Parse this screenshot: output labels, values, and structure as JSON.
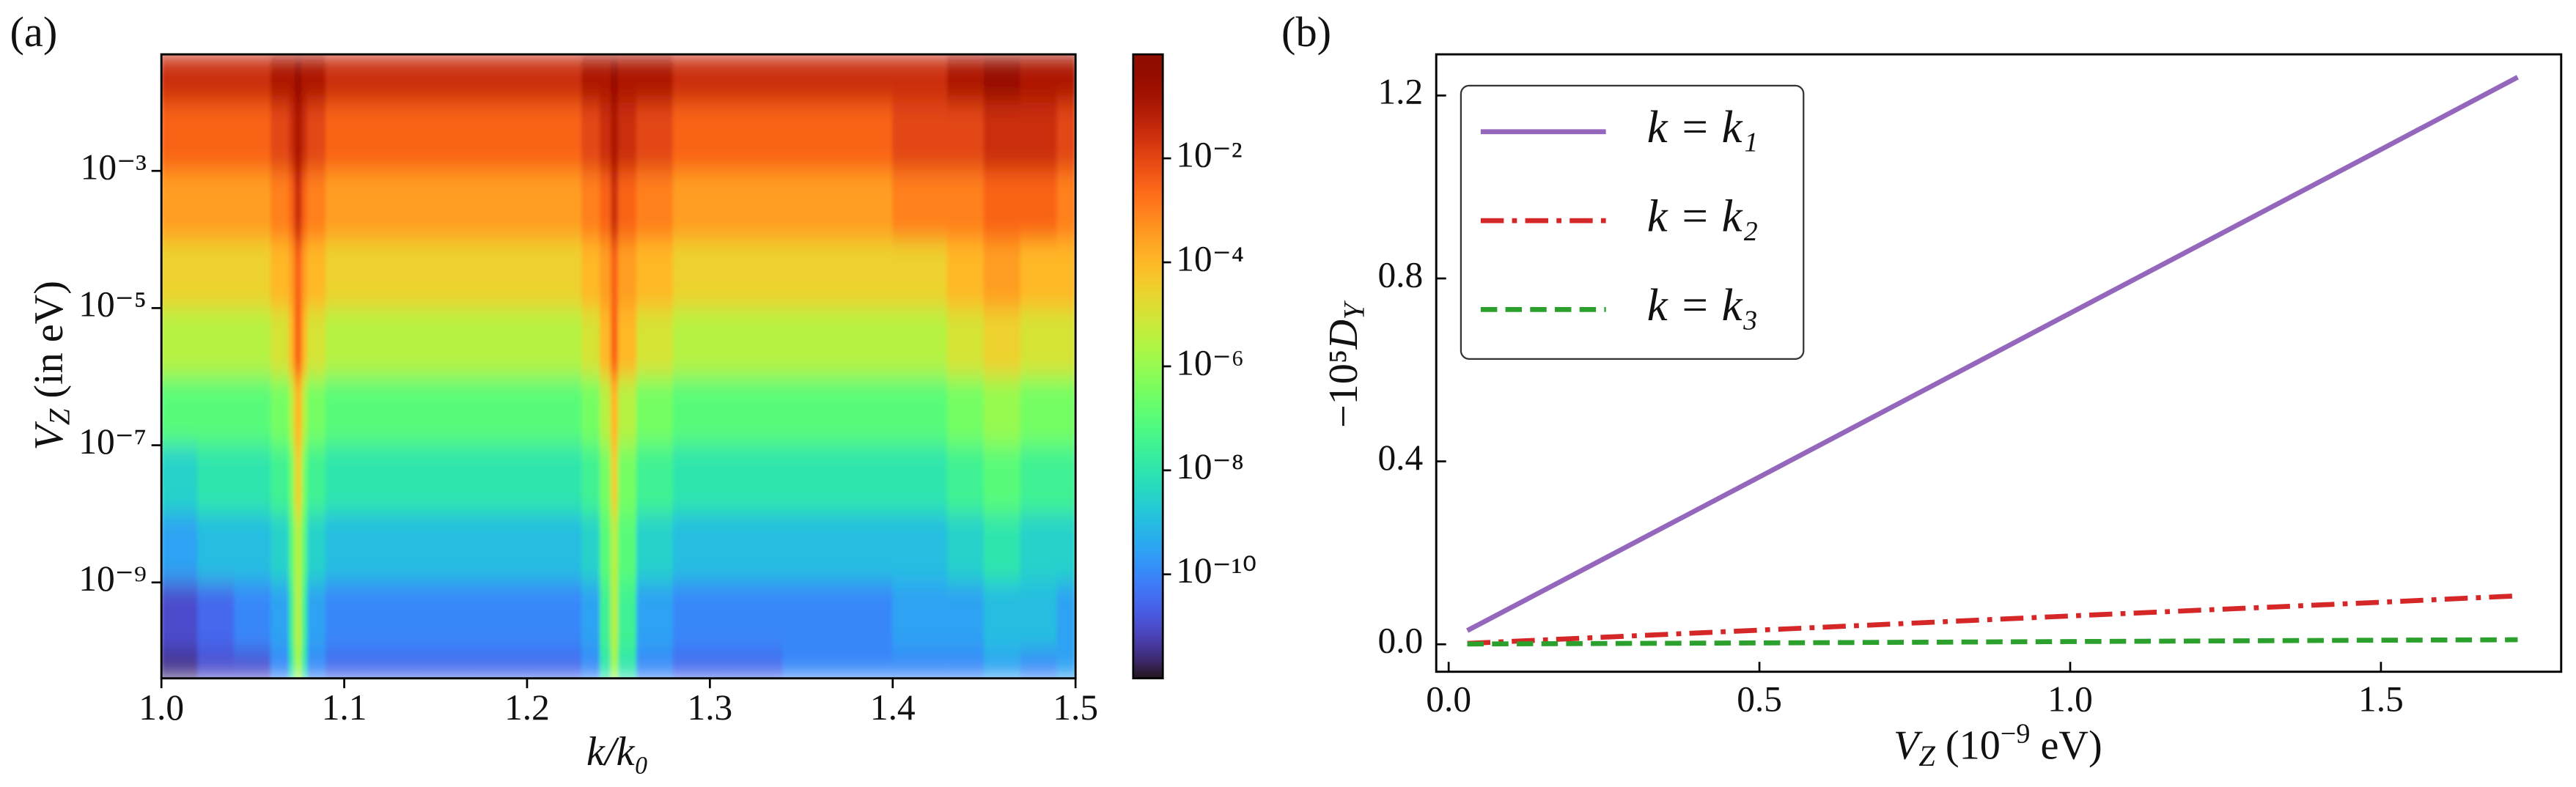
{
  "chart_data": [
    {
      "type": "heatmap",
      "panel_label": "(a)",
      "xlabel": "k/k₀",
      "ylabel": [
        "V",
        "Z",
        " (in eV)"
      ],
      "xlim": [
        1.0,
        1.5
      ],
      "xticks": [
        {
          "value": 1.0,
          "label": "1.0"
        },
        1.1,
        1.2,
        1.3,
        1.4,
        1.5
      ],
      "ylim": [
        4e-11,
        0.05
      ],
      "ylog": true,
      "yticks": [
        {
          "value": 1e-09,
          "label": "10⁻⁹"
        },
        {
          "value": 1e-07,
          "label": "10⁻⁷"
        },
        {
          "value": 1e-05,
          "label": "10⁻⁵"
        },
        {
          "value": 0.001,
          "label": "10⁻³"
        }
      ],
      "colormap": "turbo",
      "colorbar": {
        "lim": [
          1e-12,
          1
        ],
        "log": true,
        "ticks": [
          {
            "value": 1e-10,
            "label": "10⁻¹⁰"
          },
          {
            "value": 1e-08,
            "label": "10⁻⁸"
          },
          {
            "value": 1e-06,
            "label": "10⁻⁶"
          },
          {
            "value": 0.0001,
            "label": "10⁻⁴"
          },
          {
            "value": 0.01,
            "label": "10⁻²"
          }
        ]
      },
      "x_edges": [
        1.0,
        1.02,
        1.04,
        1.06,
        1.07,
        1.073,
        1.077,
        1.08,
        1.09,
        1.11,
        1.14,
        1.17,
        1.2,
        1.23,
        1.24,
        1.246,
        1.25,
        1.26,
        1.28,
        1.31,
        1.34,
        1.37,
        1.4,
        1.43,
        1.45,
        1.47,
        1.49,
        1.5
      ],
      "y_edges": [
        4e-11,
        1e-10,
        1e-09,
        1e-08,
        1e-07,
        1e-06,
        1e-05,
        0.0001,
        0.001,
        0.01,
        0.05
      ],
      "z": [
        [
          3e-12,
          1e-11,
          1e-11,
          1e-10,
          1e-08,
          1e-06,
          1e-08,
          1e-10,
          3e-11,
          3e-11,
          3e-11,
          3e-11,
          3e-11,
          1e-10,
          1e-08,
          1e-06,
          1e-08,
          1e-10,
          3e-11,
          3e-11,
          1e-10,
          1e-10,
          1e-10,
          1e-10,
          3e-10,
          1e-10,
          3e-10
        ],
        [
          1e-11,
          3e-11,
          1e-10,
          3e-10,
          3e-08,
          3e-06,
          3e-08,
          3e-10,
          1e-10,
          1e-10,
          1e-10,
          1e-10,
          1e-10,
          3e-10,
          3e-08,
          3e-06,
          3e-08,
          3e-10,
          1e-10,
          1e-10,
          1e-10,
          1e-10,
          3e-10,
          3e-10,
          1e-09,
          1e-09,
          3e-10
        ],
        [
          3e-10,
          1e-09,
          1e-09,
          3e-09,
          1e-07,
          3e-06,
          1e-07,
          3e-09,
          1e-09,
          1e-09,
          1e-09,
          1e-09,
          1e-09,
          3e-09,
          1e-07,
          3e-06,
          1e-07,
          3e-09,
          1e-09,
          1e-09,
          1e-09,
          1e-09,
          1e-09,
          3e-09,
          1e-08,
          3e-09,
          3e-09
        ],
        [
          3e-09,
          1e-08,
          1e-08,
          3e-08,
          3e-07,
          3e-05,
          3e-07,
          3e-08,
          1e-08,
          1e-08,
          1e-08,
          1e-08,
          1e-08,
          3e-08,
          3e-07,
          3e-05,
          3e-07,
          3e-08,
          1e-08,
          1e-08,
          1e-08,
          1e-08,
          1e-08,
          3e-08,
          1e-07,
          3e-08,
          3e-08
        ],
        [
          1e-07,
          1e-07,
          1e-07,
          3e-07,
          3e-06,
          0.0001,
          3e-06,
          3e-07,
          1e-07,
          1e-07,
          1e-07,
          1e-07,
          1e-07,
          3e-07,
          3e-06,
          0.0001,
          3e-06,
          3e-07,
          1e-07,
          1e-07,
          1e-07,
          1e-07,
          1e-07,
          3e-07,
          1e-06,
          3e-07,
          3e-07
        ],
        [
          3e-06,
          3e-06,
          3e-06,
          1e-05,
          0.0001,
          0.003,
          0.0001,
          1e-05,
          3e-06,
          3e-06,
          3e-06,
          3e-06,
          3e-06,
          1e-05,
          0.0001,
          0.003,
          0.0001,
          1e-05,
          3e-06,
          3e-06,
          3e-06,
          3e-06,
          3e-06,
          1e-05,
          3e-05,
          1e-05,
          1e-05
        ],
        [
          3e-05,
          3e-05,
          3e-05,
          0.0001,
          0.0003,
          0.003,
          0.0003,
          0.0001,
          3e-05,
          3e-05,
          3e-05,
          3e-05,
          3e-05,
          0.0001,
          0.0003,
          0.003,
          0.0003,
          0.0001,
          3e-05,
          3e-05,
          3e-05,
          3e-05,
          3e-05,
          0.0001,
          0.0003,
          0.0001,
          0.0001
        ],
        [
          0.0003,
          0.0003,
          0.0003,
          0.001,
          0.003,
          0.03,
          0.003,
          0.001,
          0.0003,
          0.0003,
          0.0003,
          0.0003,
          0.0003,
          0.001,
          0.003,
          0.03,
          0.003,
          0.001,
          0.0003,
          0.0003,
          0.0003,
          0.0003,
          0.001,
          0.001,
          0.003,
          0.003,
          0.001
        ],
        [
          0.003,
          0.003,
          0.003,
          0.01,
          0.03,
          0.1,
          0.03,
          0.01,
          0.003,
          0.003,
          0.003,
          0.003,
          0.003,
          0.01,
          0.03,
          0.1,
          0.03,
          0.01,
          0.003,
          0.003,
          0.003,
          0.003,
          0.01,
          0.01,
          0.03,
          0.03,
          0.01
        ],
        [
          0.03,
          0.03,
          0.03,
          0.1,
          0.1,
          0.3,
          0.1,
          0.1,
          0.03,
          0.03,
          0.03,
          0.03,
          0.03,
          0.1,
          0.1,
          0.3,
          0.1,
          0.1,
          0.03,
          0.03,
          0.03,
          0.03,
          0.03,
          0.1,
          0.3,
          0.1,
          0.1
        ]
      ]
    },
    {
      "type": "line",
      "panel_label": "(b)",
      "xlabel": [
        "V",
        "Z",
        " (10",
        "−9",
        " eV)"
      ],
      "ylabel": [
        "−10⁵",
        "D",
        "Y"
      ],
      "xlim": [
        -0.02,
        1.79
      ],
      "xticks": [
        {
          "value": 0,
          "label": "0.0"
        },
        0.5,
        {
          "value": 1,
          "label": "1.0"
        },
        1.5
      ],
      "ylim": [
        -0.06,
        1.29
      ],
      "yticks": [
        {
          "value": 0,
          "label": "0.0"
        },
        0.4,
        0.8,
        1.2
      ],
      "legend": "upper left",
      "x": [
        0.03,
        0.5,
        1.0,
        1.5,
        1.72
      ],
      "series": [
        {
          "name": "k = k₁",
          "color": "#9467bd",
          "linestyle": "solid",
          "values": [
            0.03,
            0.366,
            0.724,
            1.082,
            1.24
          ]
        },
        {
          "name": "k = k₂",
          "color": "#d62728",
          "linestyle": "dashdot",
          "values": [
            0.002,
            0.031,
            0.062,
            0.092,
            0.106
          ]
        },
        {
          "name": "k = k₃",
          "color": "#2ca02c",
          "linestyle": "dashed",
          "values": [
            0.0006,
            0.003,
            0.006,
            0.009,
            0.01
          ]
        }
      ]
    }
  ]
}
